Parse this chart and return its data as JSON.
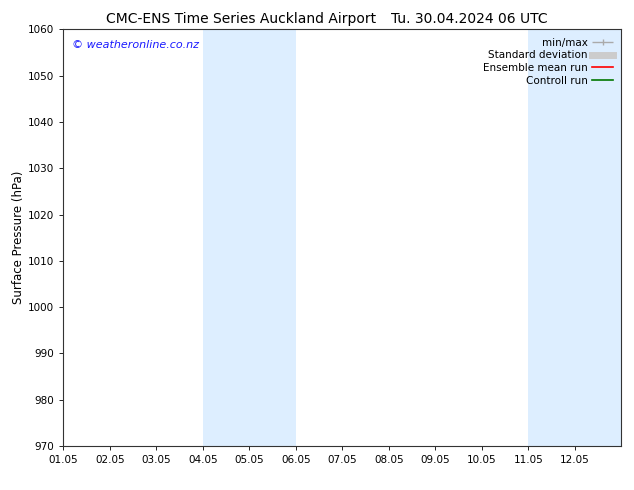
{
  "title_left": "CMC-ENS Time Series Auckland Airport",
  "title_right": "Tu. 30.04.2024 06 UTC",
  "ylabel": "Surface Pressure (hPa)",
  "ylim": [
    970,
    1060
  ],
  "yticks": [
    970,
    980,
    990,
    1000,
    1010,
    1020,
    1030,
    1040,
    1050,
    1060
  ],
  "x_start": "2024-05-01",
  "x_end": "2024-05-13",
  "x_tick_labels": [
    "01.05",
    "02.05",
    "03.05",
    "04.05",
    "05.05",
    "06.05",
    "07.05",
    "08.05",
    "09.05",
    "10.05",
    "11.05",
    "12.05"
  ],
  "shaded_bands": [
    {
      "x0": "2024-05-04",
      "x1": "2024-05-06"
    },
    {
      "x0": "2024-05-11",
      "x1": "2024-05-13"
    }
  ],
  "band_color": "#ddeeff",
  "watermark_text": "© weatheronline.co.nz",
  "watermark_color": "#1a1aff",
  "background_color": "#ffffff",
  "legend_entries": [
    {
      "label": "min/max",
      "color": "#aaaaaa",
      "lw": 1.0
    },
    {
      "label": "Standard deviation",
      "color": "#cccccc",
      "lw": 5
    },
    {
      "label": "Ensemble mean run",
      "color": "#ff0000",
      "lw": 1.2
    },
    {
      "label": "Controll run",
      "color": "#007700",
      "lw": 1.2
    }
  ],
  "title_fontsize": 10,
  "tick_label_fontsize": 7.5,
  "ylabel_fontsize": 8.5,
  "watermark_fontsize": 8,
  "legend_fontsize": 7.5
}
